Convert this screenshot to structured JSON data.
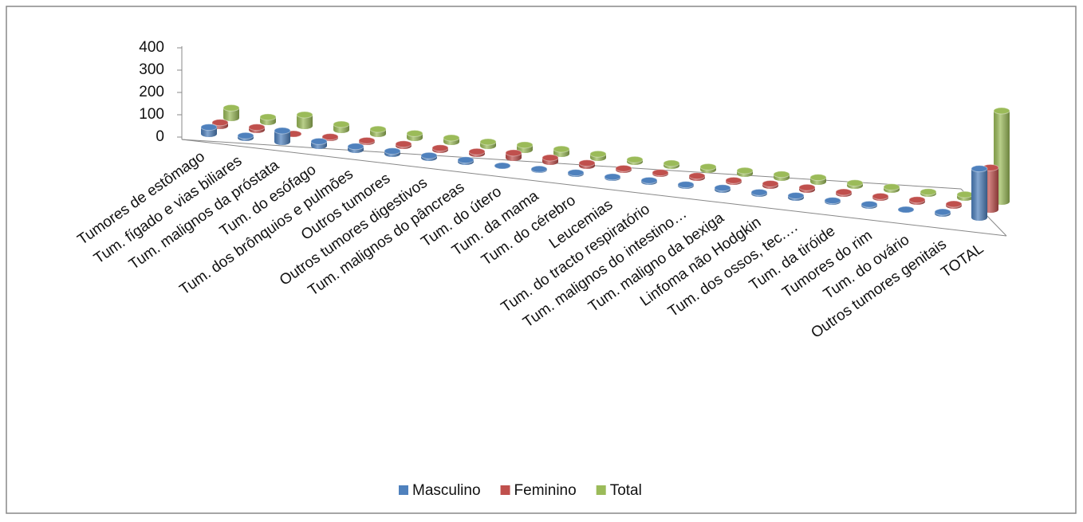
{
  "chart_data": {
    "type": "bar3d",
    "categories": [
      "Tumores de estômago",
      "Tum. fígado e vias biliares",
      "Tum. malignos da próstata",
      "Tum. do esófago",
      "Tum. dos brônquios e pulmões",
      "Outros tumores",
      "Outros tumores digestivos",
      "Tum. malignos do pâncreas",
      "Tum. do útero",
      "Tum. da mama",
      "Tum. do cérebro",
      "Leucemias",
      "Tum. do tracto respiratório",
      "Tum. malignos do intestino…",
      "Tum. maligno da bexiga",
      "Linfoma não Hodgkin",
      "Tum. dos ossos, tec.…",
      "Tum. da tiróide",
      "Tumores do rim",
      "Tum. do ovário",
      "Outros tumores genitais",
      "TOTAL"
    ],
    "series": [
      {
        "name": "Masculino",
        "color": "#4f81bd",
        "values": [
          30,
          10,
          50,
          20,
          15,
          12,
          10,
          8,
          0,
          3,
          5,
          4,
          6,
          5,
          8,
          6,
          9,
          5,
          6,
          0,
          7,
          219
        ]
      },
      {
        "name": "Feminino",
        "color": "#c0504d",
        "values": [
          15,
          12,
          0,
          5,
          6,
          8,
          8,
          10,
          22,
          18,
          12,
          6,
          5,
          8,
          6,
          9,
          10,
          7,
          6,
          8,
          7,
          188
        ]
      },
      {
        "name": "Total",
        "color": "#9bbb59",
        "values": [
          45,
          22,
          50,
          25,
          21,
          20,
          18,
          18,
          22,
          21,
          17,
          10,
          11,
          13,
          14,
          15,
          19,
          12,
          12,
          8,
          14,
          407
        ]
      }
    ],
    "ylim": [
      0,
      400
    ],
    "yticks": [
      0,
      100,
      200,
      300,
      400
    ],
    "legend": "bottom"
  }
}
